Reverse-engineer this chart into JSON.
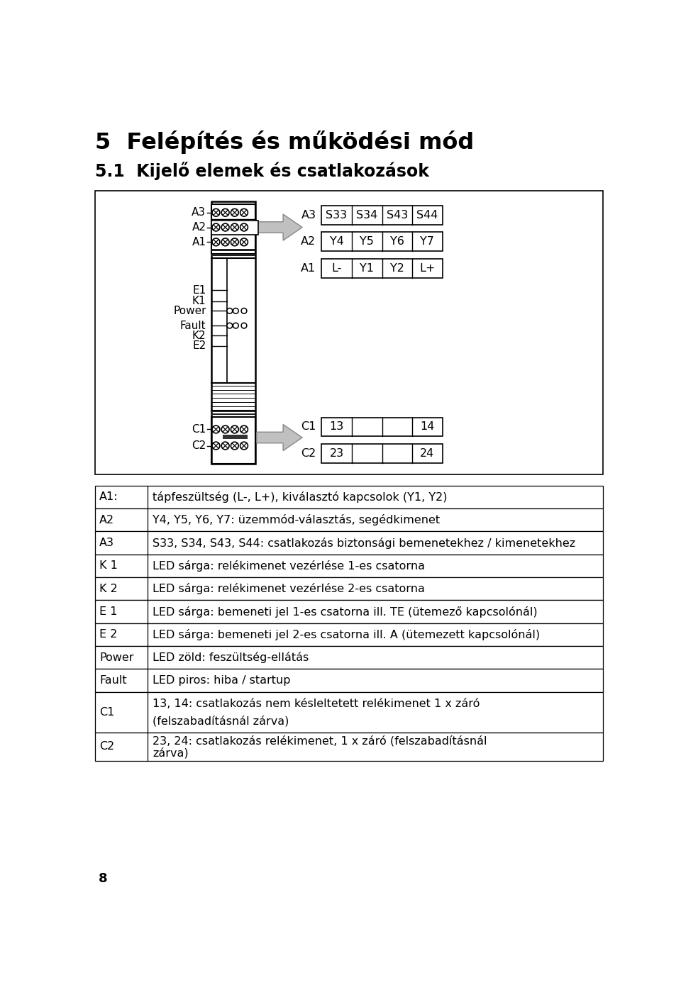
{
  "title1": "5  Felépítés és működési mód",
  "title2": "5.1  Kijelő elemek és csatlakozások",
  "page_number": "8",
  "table_rows": [
    [
      "A1:",
      "tápfeszültség (L-, L+), kiválasztó kapcsolok (Y1, Y2)"
    ],
    [
      "A2",
      "Y4, Y5, Y6, Y7: üzemmód-választás, segédkimenet"
    ],
    [
      "A3",
      "S33, S34, S43, S44: csatlakozás biztonsági bemenetekhez / kimenetekhez"
    ],
    [
      "K 1",
      "LED sárga: relékimenet vezérlése 1-es csatorna"
    ],
    [
      "K 2",
      "LED sárga: relékimenet vezérlése 2-es csatorna"
    ],
    [
      "E 1",
      "LED sárga: bemeneti jel 1-es csatorna ill. TE (ütemező kapcsolónál)"
    ],
    [
      "E 2",
      "LED sárga: bemeneti jel 2-es csatorna ill. A (ütemezett kapcsolónál)"
    ],
    [
      "Power",
      "LED zöld: feszültség-ellátás"
    ],
    [
      "Fault",
      "LED piros: hiba / startup"
    ],
    [
      "C1",
      "13, 14: csatlakozás nem késleltetett relékimenet 1 x záró (felszabadításnál zárva)"
    ],
    [
      "C2",
      "23, 24: csatlakozás relékimenet, 1 x záró (felszabadításnál zárva)"
    ]
  ],
  "bg_color": "#ffffff",
  "box_color": "#000000",
  "text_color": "#000000"
}
